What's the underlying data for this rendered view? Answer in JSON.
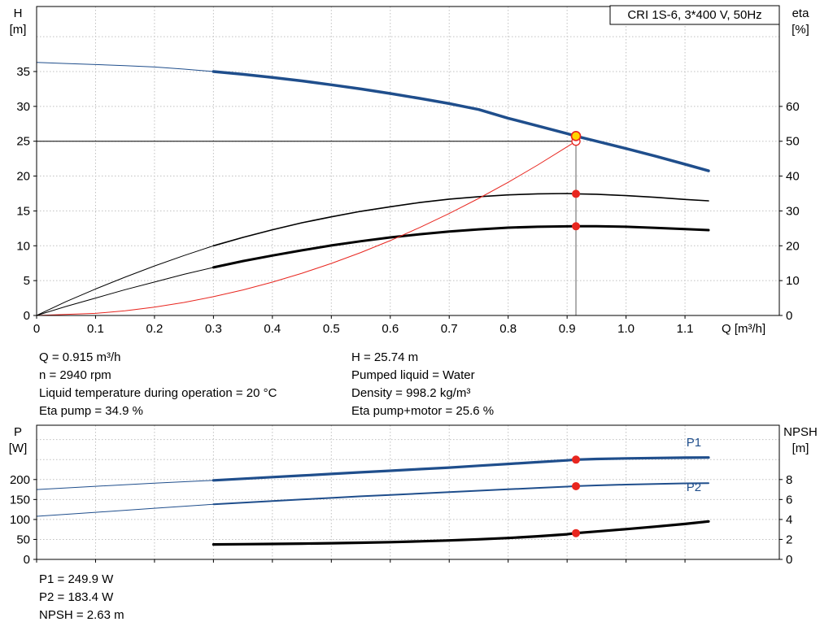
{
  "colors": {
    "blue": "#1f4e8c",
    "black": "#000000",
    "red": "#e8261f",
    "yellow": "#ffd500",
    "gray": "#606060",
    "grid": "#c0c0c0"
  },
  "marker_styles": {
    "red_dot": {
      "r": 5,
      "fill": "red",
      "stroke": "none",
      "sw": 0
    },
    "duty_yellow": {
      "r": 5.5,
      "fill": "yellow",
      "stroke": "red",
      "sw": 1.6
    },
    "red_open": {
      "r": 5,
      "fill": "#ffffff",
      "stroke": "red",
      "sw": 1.3
    }
  },
  "info_top": {
    "rows": [
      {
        "left": "Q = 0.915 m³/h",
        "right": "H = 25.74 m"
      },
      {
        "left": "n = 2940 rpm",
        "right": "Pumped liquid = Water"
      },
      {
        "left": "Liquid temperature during operation = 20 °C",
        "right": "Density = 998.2 kg/m³"
      },
      {
        "left": "Eta pump = 34.9 %",
        "right": "Eta pump+motor = 25.6 %"
      }
    ]
  },
  "info_bottom": {
    "lines": [
      "P1 = 249.9 W",
      "P2 = 183.4 W",
      "NPSH = 2.63 m"
    ]
  },
  "chart_data": [
    {
      "name": "qh-eta-chart",
      "type": "line",
      "title": "CRI 1S-6, 3*400 V, 50Hz",
      "x_axis": {
        "label": "Q [m³/h]",
        "tick_values": [
          0,
          0.1,
          0.2,
          0.3,
          0.4,
          0.5,
          0.6,
          0.7,
          0.8,
          0.9,
          1.0,
          1.1
        ],
        "tick_labels": [
          "0",
          "0.1",
          "0.2",
          "0.3",
          "0.4",
          "0.5",
          "0.6",
          "0.7",
          "0.8",
          "0.9",
          "1.0",
          "1.1"
        ],
        "range": [
          0,
          1.26
        ]
      },
      "left_axis": {
        "name": "H",
        "unit": "[m]",
        "tick_values": [
          0,
          5,
          10,
          15,
          20,
          25,
          30,
          35
        ],
        "grid_extra": [
          40
        ],
        "range": [
          0,
          44.33
        ]
      },
      "right_axis": {
        "name": "eta",
        "unit": "[%]",
        "tick_values": [
          0,
          10,
          20,
          30,
          40,
          50,
          60
        ],
        "range": [
          0,
          88.67
        ]
      },
      "ref_lines": [
        {
          "name": "duty-head-line",
          "type": "h",
          "axis": "left",
          "value": 25.0,
          "x1": 0,
          "x2": 0.915,
          "color": "black",
          "width": 1
        },
        {
          "name": "duty-flow-line",
          "type": "v",
          "axis": "left",
          "value": 0.915,
          "y1": 0,
          "y2": 25.74,
          "color": "gray",
          "width": 1
        }
      ],
      "series": [
        {
          "name": "head-curve-lowflow",
          "axis": "left",
          "color": "blue",
          "width": 1,
          "points": [
            [
              0,
              36.3
            ],
            [
              0.05,
              36.15
            ],
            [
              0.1,
              36.0
            ],
            [
              0.15,
              35.85
            ],
            [
              0.2,
              35.65
            ],
            [
              0.25,
              35.35
            ],
            [
              0.3,
              35.0
            ]
          ]
        },
        {
          "name": "head-curve",
          "axis": "left",
          "color": "blue",
          "width": 3.5,
          "points": [
            [
              0.3,
              35.0
            ],
            [
              0.35,
              34.6
            ],
            [
              0.4,
              34.15
            ],
            [
              0.45,
              33.65
            ],
            [
              0.5,
              33.1
            ],
            [
              0.55,
              32.5
            ],
            [
              0.6,
              31.85
            ],
            [
              0.65,
              31.15
            ],
            [
              0.7,
              30.4
            ],
            [
              0.75,
              29.55
            ],
            [
              0.8,
              28.3
            ],
            [
              0.85,
              27.2
            ],
            [
              0.9,
              26.1
            ],
            [
              0.915,
              25.74
            ],
            [
              0.95,
              25.0
            ],
            [
              1.0,
              23.95
            ],
            [
              1.05,
              22.85
            ],
            [
              1.1,
              21.7
            ],
            [
              1.14,
              20.75
            ]
          ]
        },
        {
          "name": "eta-pump-lowflow",
          "axis": "right",
          "color": "black",
          "width": 1,
          "points": [
            [
              0,
              0
            ],
            [
              0.05,
              4.0
            ],
            [
              0.1,
              7.6
            ],
            [
              0.15,
              11.0
            ],
            [
              0.2,
              14.2
            ],
            [
              0.25,
              17.2
            ],
            [
              0.3,
              20.0
            ]
          ]
        },
        {
          "name": "eta-pump-curve",
          "axis": "right",
          "color": "black",
          "width": 1.6,
          "points": [
            [
              0.3,
              20.0
            ],
            [
              0.35,
              22.4
            ],
            [
              0.4,
              24.6
            ],
            [
              0.45,
              26.6
            ],
            [
              0.5,
              28.3
            ],
            [
              0.55,
              29.9
            ],
            [
              0.6,
              31.2
            ],
            [
              0.65,
              32.4
            ],
            [
              0.7,
              33.4
            ],
            [
              0.75,
              34.1
            ],
            [
              0.8,
              34.6
            ],
            [
              0.85,
              34.9
            ],
            [
              0.9,
              35.0
            ],
            [
              0.915,
              34.9
            ],
            [
              0.95,
              34.8
            ],
            [
              1.0,
              34.4
            ],
            [
              1.05,
              33.9
            ],
            [
              1.1,
              33.3
            ],
            [
              1.14,
              32.9
            ]
          ]
        },
        {
          "name": "eta-pump-motor-lowflow",
          "axis": "right",
          "color": "black",
          "width": 1,
          "points": [
            [
              0,
              0
            ],
            [
              0.05,
              2.6
            ],
            [
              0.1,
              5.0
            ],
            [
              0.15,
              7.4
            ],
            [
              0.2,
              9.6
            ],
            [
              0.25,
              11.8
            ],
            [
              0.3,
              13.8
            ]
          ]
        },
        {
          "name": "eta-pump-motor-curve",
          "axis": "right",
          "color": "black",
          "width": 3,
          "points": [
            [
              0.3,
              13.8
            ],
            [
              0.35,
              15.6
            ],
            [
              0.4,
              17.2
            ],
            [
              0.45,
              18.7
            ],
            [
              0.5,
              20.1
            ],
            [
              0.55,
              21.3
            ],
            [
              0.6,
              22.4
            ],
            [
              0.65,
              23.3
            ],
            [
              0.7,
              24.1
            ],
            [
              0.75,
              24.7
            ],
            [
              0.8,
              25.2
            ],
            [
              0.85,
              25.45
            ],
            [
              0.9,
              25.58
            ],
            [
              0.915,
              25.6
            ],
            [
              0.95,
              25.6
            ],
            [
              1.0,
              25.45
            ],
            [
              1.05,
              25.15
            ],
            [
              1.1,
              24.8
            ],
            [
              1.14,
              24.5
            ]
          ]
        },
        {
          "name": "system-curve",
          "axis": "left",
          "color": "red",
          "width": 1,
          "points": [
            [
              0,
              0
            ],
            [
              0.1,
              0.3
            ],
            [
              0.15,
              0.67
            ],
            [
              0.2,
              1.19
            ],
            [
              0.25,
              1.87
            ],
            [
              0.3,
              2.69
            ],
            [
              0.35,
              3.66
            ],
            [
              0.4,
              4.78
            ],
            [
              0.45,
              6.05
            ],
            [
              0.5,
              7.47
            ],
            [
              0.55,
              9.03
            ],
            [
              0.6,
              10.75
            ],
            [
              0.65,
              12.62
            ],
            [
              0.7,
              14.63
            ],
            [
              0.75,
              16.8
            ],
            [
              0.8,
              19.11
            ],
            [
              0.85,
              21.58
            ],
            [
              0.9,
              24.19
            ],
            [
              0.915,
              25.0
            ]
          ]
        }
      ],
      "markers": [
        {
          "name": "requested-duty-point",
          "x": 0.915,
          "y": 25.0,
          "axis": "left",
          "style": "red_open"
        },
        {
          "name": "duty-point",
          "x": 0.915,
          "y": 25.74,
          "axis": "left",
          "style": "duty_yellow"
        },
        {
          "name": "eta-pump-point",
          "x": 0.915,
          "y": 34.9,
          "axis": "right",
          "style": "red_dot"
        },
        {
          "name": "eta-pump-motor-point",
          "x": 0.915,
          "y": 25.6,
          "axis": "right",
          "style": "red_dot"
        }
      ]
    },
    {
      "name": "power-npsh-chart",
      "type": "line",
      "x_axis": {
        "tick_values": [
          0,
          0.1,
          0.2,
          0.3,
          0.4,
          0.5,
          0.6,
          0.7,
          0.8,
          0.9,
          1.0,
          1.1
        ],
        "tick_labels": [],
        "range": [
          0,
          1.26
        ]
      },
      "left_axis": {
        "name": "P",
        "unit": "[W]",
        "tick_values": [
          0,
          50,
          100,
          150,
          200
        ],
        "grid_extra": [
          250,
          300
        ],
        "range": [
          0,
          336
        ]
      },
      "right_axis": {
        "name": "NPSH",
        "unit": "[m]",
        "tick_values": [
          0,
          2,
          4,
          6,
          8
        ],
        "range": [
          0,
          13.44
        ]
      },
      "series": [
        {
          "name": "p1-lowflow",
          "axis": "left",
          "color": "blue",
          "width": 1,
          "points": [
            [
              0,
              175
            ],
            [
              0.1,
              183
            ],
            [
              0.2,
              191
            ],
            [
              0.3,
              198
            ]
          ]
        },
        {
          "name": "p1-curve",
          "axis": "left",
          "color": "blue",
          "width": 3.2,
          "points": [
            [
              0.3,
              198
            ],
            [
              0.35,
              202
            ],
            [
              0.4,
              206
            ],
            [
              0.45,
              210
            ],
            [
              0.5,
              214
            ],
            [
              0.55,
              218
            ],
            [
              0.6,
              222
            ],
            [
              0.65,
              226
            ],
            [
              0.7,
              230
            ],
            [
              0.75,
              234.5
            ],
            [
              0.8,
              239
            ],
            [
              0.85,
              243.5
            ],
            [
              0.9,
              248
            ],
            [
              0.915,
              249.9
            ],
            [
              0.95,
              251.5
            ],
            [
              1.0,
              253
            ],
            [
              1.05,
              254
            ],
            [
              1.1,
              254.8
            ],
            [
              1.14,
              255.2
            ]
          ]
        },
        {
          "name": "p2-lowflow",
          "axis": "left",
          "color": "blue",
          "width": 1,
          "points": [
            [
              0,
              108
            ],
            [
              0.1,
              118
            ],
            [
              0.2,
              128
            ],
            [
              0.3,
              138
            ]
          ]
        },
        {
          "name": "p2-curve",
          "axis": "left",
          "color": "blue",
          "width": 2,
          "points": [
            [
              0.3,
              138
            ],
            [
              0.35,
              142
            ],
            [
              0.4,
              146
            ],
            [
              0.45,
              150
            ],
            [
              0.5,
              154
            ],
            [
              0.55,
              158
            ],
            [
              0.6,
              161.5
            ],
            [
              0.65,
              165
            ],
            [
              0.7,
              168.5
            ],
            [
              0.75,
              172
            ],
            [
              0.8,
              175.5
            ],
            [
              0.85,
              179
            ],
            [
              0.9,
              182.3
            ],
            [
              0.915,
              183.4
            ],
            [
              0.95,
              185.3
            ],
            [
              1.0,
              187.3
            ],
            [
              1.05,
              189
            ],
            [
              1.1,
              190.3
            ],
            [
              1.14,
              191
            ]
          ]
        },
        {
          "name": "npsh-curve",
          "axis": "right",
          "color": "black",
          "width": 3.2,
          "points": [
            [
              0.3,
              1.5
            ],
            [
              0.35,
              1.52
            ],
            [
              0.4,
              1.55
            ],
            [
              0.45,
              1.58
            ],
            [
              0.5,
              1.62
            ],
            [
              0.55,
              1.67
            ],
            [
              0.6,
              1.73
            ],
            [
              0.65,
              1.81
            ],
            [
              0.7,
              1.9
            ],
            [
              0.75,
              2.01
            ],
            [
              0.8,
              2.14
            ],
            [
              0.85,
              2.31
            ],
            [
              0.9,
              2.52
            ],
            [
              0.915,
              2.63
            ],
            [
              0.95,
              2.79
            ],
            [
              1.0,
              3.03
            ],
            [
              1.05,
              3.28
            ],
            [
              1.1,
              3.55
            ],
            [
              1.14,
              3.8
            ]
          ]
        }
      ],
      "markers": [
        {
          "name": "p1-point",
          "x": 0.915,
          "y": 249.9,
          "axis": "left",
          "style": "red_dot"
        },
        {
          "name": "p2-point",
          "x": 0.915,
          "y": 183.4,
          "axis": "left",
          "style": "red_dot"
        },
        {
          "name": "npsh-point",
          "x": 0.915,
          "y": 2.63,
          "axis": "right",
          "style": "red_dot"
        }
      ],
      "annotations": [
        {
          "name": "p1-label",
          "text": "P1",
          "x": 1.115,
          "y": 283,
          "axis": "left",
          "color": "blue"
        },
        {
          "name": "p2-label",
          "text": "P2",
          "x": 1.115,
          "y": 171,
          "axis": "left",
          "color": "blue"
        }
      ]
    }
  ]
}
